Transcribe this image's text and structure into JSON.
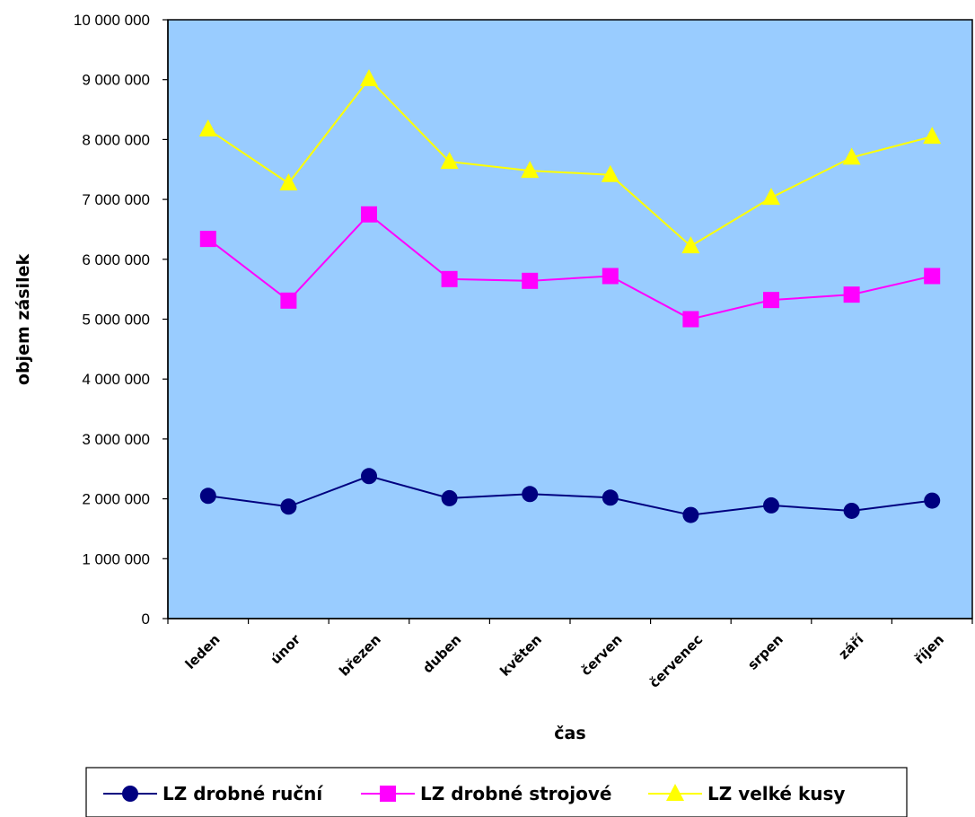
{
  "chart_data": {
    "type": "line",
    "categories": [
      "leden",
      "únor",
      "březen",
      "duben",
      "květen",
      "červen",
      "červenec",
      "srpen",
      "září",
      "říjen"
    ],
    "xlabel": "čas",
    "ylabel": "objem zásilek",
    "ylim": [
      0,
      10000000
    ],
    "yticks": [
      0,
      1000000,
      2000000,
      3000000,
      4000000,
      5000000,
      6000000,
      7000000,
      8000000,
      9000000,
      10000000
    ],
    "ytick_labels": [
      "0",
      "1 000 000",
      "2 000 000",
      "3 000 000",
      "4 000 000",
      "5 000 000",
      "6 000 000",
      "7 000 000",
      "8 000 000",
      "9 000 000",
      "10 000 000"
    ],
    "grid": false,
    "legend_position": "bottom",
    "plot_background": "#99CCFF",
    "series": [
      {
        "name": "LZ drobné ruční",
        "color": "#000080",
        "marker": "circle",
        "values": [
          2050000,
          1870000,
          2380000,
          2010000,
          2080000,
          2020000,
          1730000,
          1890000,
          1800000,
          1970000
        ]
      },
      {
        "name": "LZ drobné strojové",
        "color": "#FF00FF",
        "marker": "square",
        "values": [
          6340000,
          5310000,
          6750000,
          5670000,
          5640000,
          5720000,
          5000000,
          5320000,
          5410000,
          5720000
        ]
      },
      {
        "name": "LZ velké kusy",
        "color": "#FFFF00",
        "marker": "triangle",
        "values": [
          8170000,
          7270000,
          9010000,
          7630000,
          7480000,
          7410000,
          6220000,
          7030000,
          7700000,
          8050000
        ]
      }
    ]
  }
}
